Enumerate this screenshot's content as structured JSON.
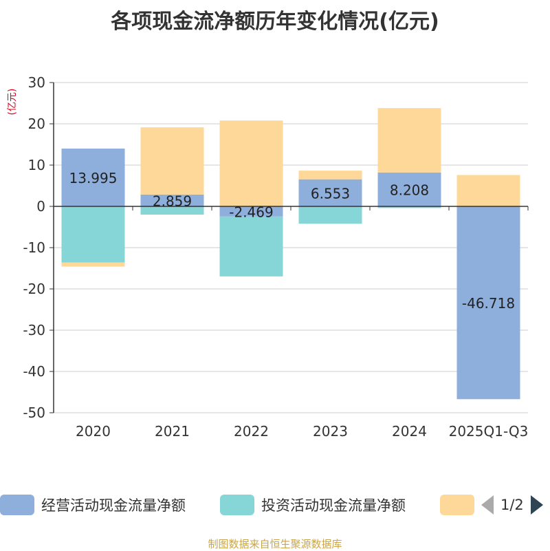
{
  "chart_data": {
    "type": "bar",
    "stacked": true,
    "title": "各项现金流净额历年变化情况(亿元)",
    "ylabel": "(亿元)",
    "xlabel": "",
    "ylim": [
      -50,
      30
    ],
    "yticks": [
      30,
      20,
      10,
      0,
      -10,
      -20,
      -30,
      -40,
      -50
    ],
    "categories": [
      "2020",
      "2021",
      "2022",
      "2023",
      "2024",
      "2025Q1-Q3"
    ],
    "series": [
      {
        "name": "经营活动现金流量净额",
        "color": "#8eaedb",
        "values": [
          13.995,
          2.859,
          -2.469,
          6.553,
          8.208,
          -46.718
        ],
        "show_labels": true
      },
      {
        "name": "投资活动现金流量净额",
        "color": "#86d5d7",
        "values": [
          -13.6,
          -2.0,
          -14.5,
          -4.2,
          -0.4,
          0.0
        ],
        "show_labels": false
      },
      {
        "name": "",
        "color": "#fed899",
        "values": [
          -1.0,
          16.3,
          20.8,
          2.1,
          15.6,
          7.6
        ],
        "show_labels": false
      }
    ],
    "data_labels": [
      "13.995",
      "2.859",
      "-2.469",
      "6.553",
      "8.208",
      "-46.718"
    ],
    "legend_position": "bottom"
  },
  "legend": {
    "page_indicator": "1/2"
  },
  "footer": {
    "source": "制图数据来自恒生聚源数据库"
  }
}
